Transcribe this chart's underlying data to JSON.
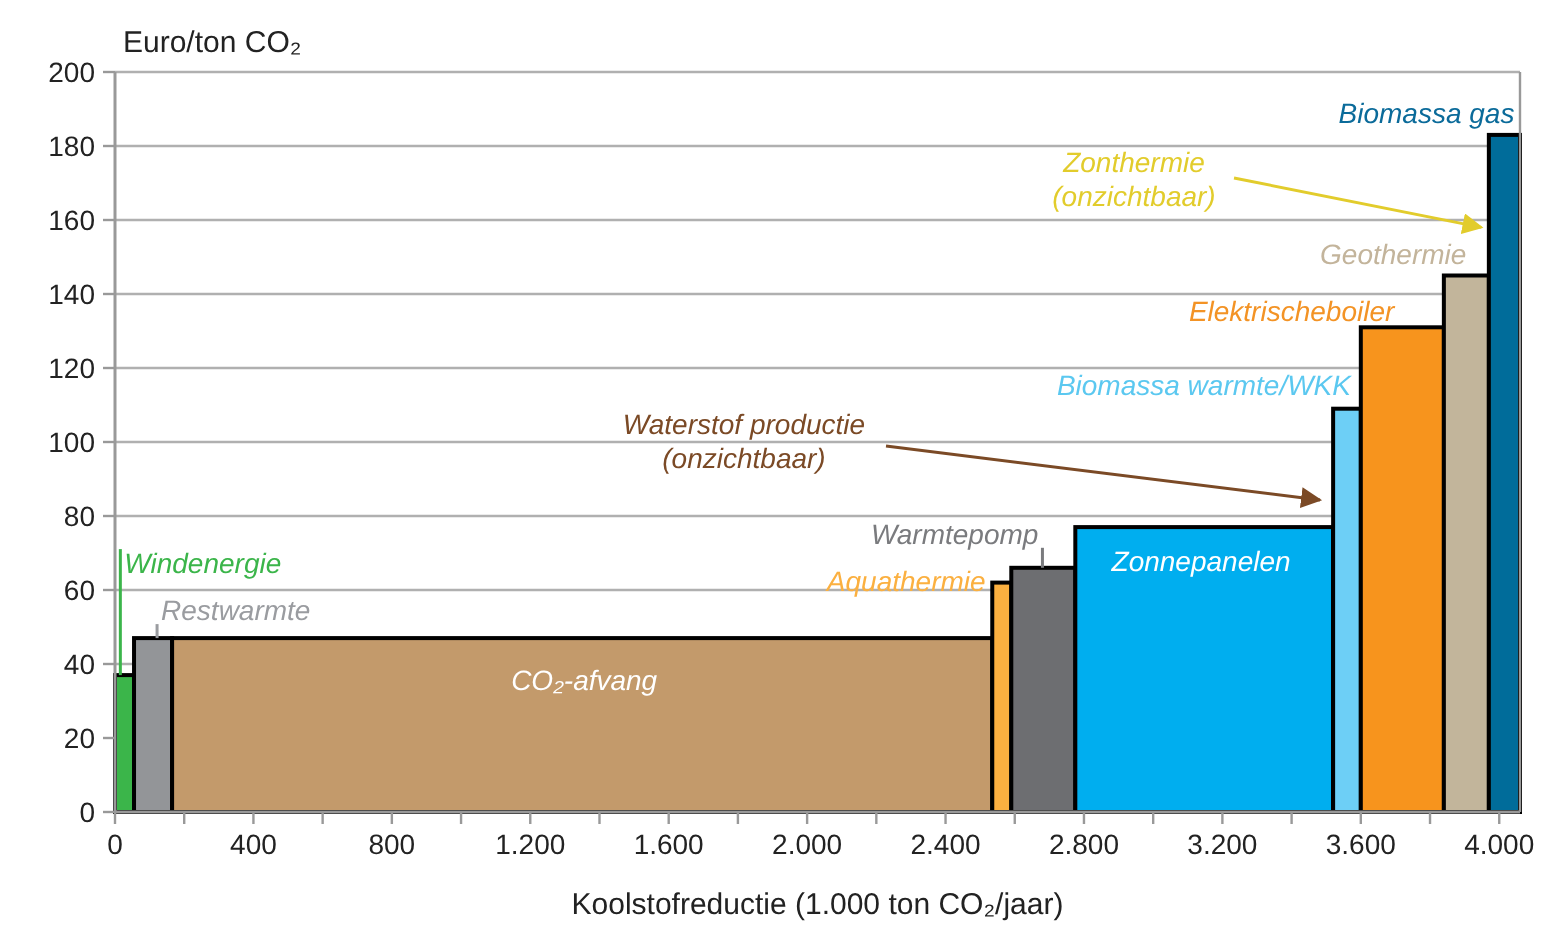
{
  "chart_data": {
    "type": "histogram",
    "ylabel": "Euro/ton CO₂",
    "xlabel": "Koolstofreductie (1.000 ton CO₂/jaar)",
    "bins": [
      0,
      55,
      165,
      2535,
      2590,
      2775,
      3520,
      3600,
      3840,
      3970,
      4060
    ],
    "values": [
      37,
      47,
      47,
      62,
      66,
      77,
      109,
      131,
      145,
      183
    ],
    "colors": [
      "#3bb54a",
      "#939598",
      "#c39a6b",
      "#fbb040",
      "#6d6e71",
      "#00aeef",
      "#6dcff6",
      "#f7941d",
      "#c2b59b",
      "#006c9a"
    ],
    "xlim": [
      0,
      4060
    ],
    "xticks": [
      0,
      {
        "value": 200,
        "label": null
      },
      400,
      {
        "value": 600,
        "label": null
      },
      800,
      {
        "value": 1000,
        "label": null
      },
      {
        "value": 1200,
        "label": "1.200"
      },
      {
        "value": 1400,
        "label": null
      },
      {
        "value": 1600,
        "label": "1.600"
      },
      {
        "value": 1800,
        "label": null
      },
      {
        "value": 2000,
        "label": "2.000"
      },
      {
        "value": 2200,
        "label": null
      },
      {
        "value": 2400,
        "label": "2.400"
      },
      {
        "value": 2600,
        "label": null
      },
      {
        "value": 2800,
        "label": "2.800"
      },
      {
        "value": 3000,
        "label": null
      },
      {
        "value": 3200,
        "label": "3.200"
      },
      {
        "value": 3400,
        "label": null
      },
      {
        "value": 3600,
        "label": "3.600"
      },
      {
        "value": 3800,
        "label": null
      },
      {
        "value": 4000,
        "label": "4.000"
      }
    ],
    "ylim": [
      0,
      200
    ],
    "yticks": [
      0,
      20,
      40,
      60,
      80,
      100,
      120,
      140,
      160,
      180,
      200
    ],
    "grid": "y",
    "annotations": [
      {
        "text": "Windenergie",
        "x": 27,
        "y": 37
      },
      {
        "text": "Restwarmte",
        "x": 110,
        "y": 47
      },
      {
        "text": "CO₂-afvang",
        "x": 1350,
        "y": 47
      },
      {
        "text": "Aquathermie",
        "x": 2562,
        "y": 62
      },
      {
        "text": "Warmtepomp",
        "x": 2680,
        "y": 66
      },
      {
        "text": "Zonnepanelen",
        "x": 3150,
        "y": 77
      },
      "Waterstof productie\n(onzichtbaar)",
      {
        "text": "Biomassa warmte/WKK",
        "x": 3560,
        "y": 109
      },
      {
        "text": "Elektrischeboiler",
        "x": 3720,
        "y": 131
      },
      {
        "text": "Geothermie",
        "x": 3905,
        "y": 145
      },
      {
        "text": "Zonthermie\n(onzichtbaar)",
        "x": 3960,
        "y": 158
      },
      {
        "text": "Biomassa gas",
        "x": 4015,
        "y": 183
      }
    ]
  }
}
